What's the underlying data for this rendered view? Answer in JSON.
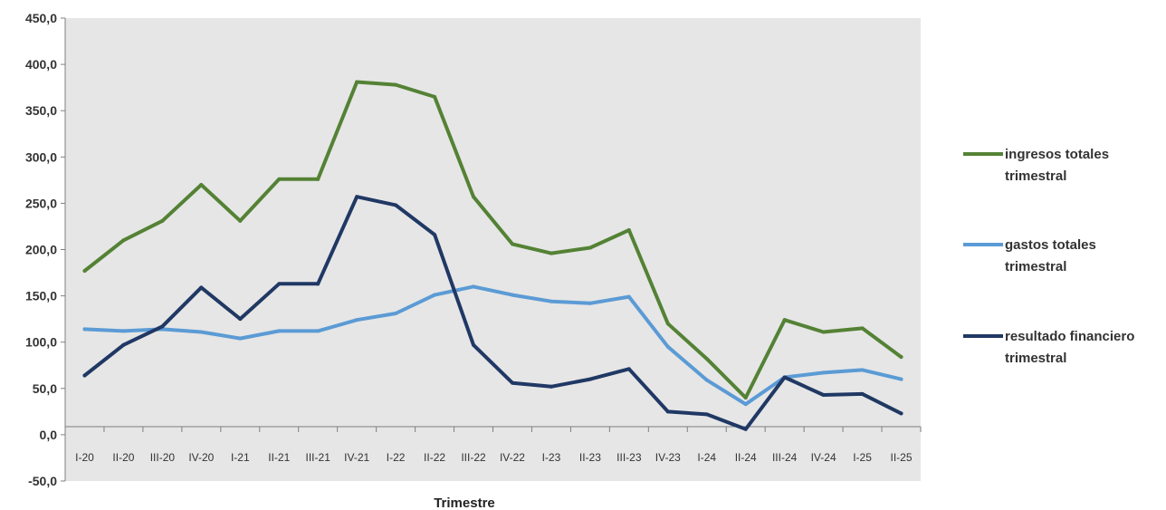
{
  "chart_data": {
    "type": "line",
    "title": "",
    "xlabel": "Trimestre",
    "ylabel": "",
    "ylim": [
      -50,
      450
    ],
    "yticks": [
      "-50,0",
      "0,0",
      "50,0",
      "100,0",
      "150,0",
      "200,0",
      "250,0",
      "300,0",
      "350,0",
      "400,0",
      "450,0"
    ],
    "categories": [
      "I-20",
      "II-20",
      "III-20",
      "IV-20",
      "I-21",
      "II-21",
      "III-21",
      "IV-21",
      "I-22",
      "II-22",
      "III-22",
      "IV-22",
      "I-23",
      "II-23",
      "III-23",
      "IV-23",
      "I-24",
      "II-24",
      "III-24",
      "IV-24",
      "I-25",
      "II-25"
    ],
    "grid": false,
    "legend_position": "right",
    "series": [
      {
        "name_lines": [
          "ingresos totales",
          "trimestral"
        ],
        "color": "#548235",
        "values": [
          177,
          210,
          231,
          270,
          231,
          276,
          276,
          381,
          378,
          365,
          257,
          206,
          196,
          202,
          221,
          120,
          82,
          40,
          124,
          111,
          115,
          84
        ]
      },
      {
        "name_lines": [
          "gastos totales",
          "trimestral"
        ],
        "color": "#5B9BD5",
        "values": [
          114,
          112,
          114,
          111,
          104,
          112,
          112,
          124,
          131,
          151,
          160,
          151,
          144,
          142,
          149,
          95,
          59,
          33,
          62,
          67,
          70,
          60
        ]
      },
      {
        "name_lines": [
          "resultado financiero",
          "trimestral"
        ],
        "color": "#203864",
        "values": [
          64,
          97,
          117,
          159,
          125,
          163,
          163,
          257,
          248,
          216,
          97,
          56,
          52,
          60,
          71,
          25,
          22,
          6,
          62,
          43,
          44,
          23
        ]
      }
    ]
  }
}
